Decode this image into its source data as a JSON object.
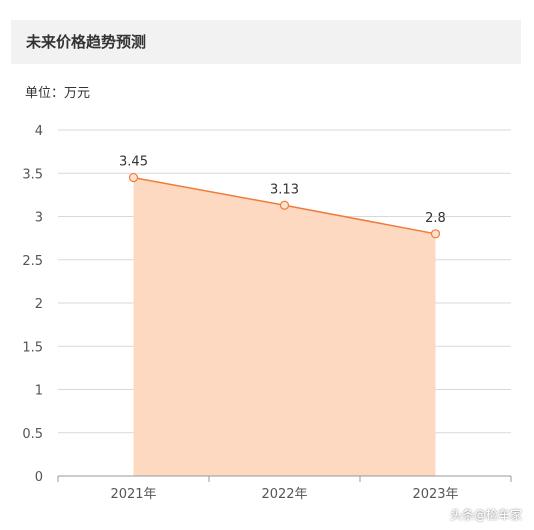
{
  "header": {
    "title": "未来价格趋势预测"
  },
  "unit_label": "单位：万元",
  "watermark": "头条@检车家",
  "colors": {
    "line": "#f07c3a",
    "area": "#fdd9c1",
    "grid": "#d9d9d9",
    "axis": "#999999",
    "text": "#555555"
  },
  "chart_data": {
    "type": "area",
    "title": "未来价格趋势预测",
    "ylabel": "单位：万元",
    "categories": [
      "2021年",
      "2022年",
      "2023年"
    ],
    "values": [
      3.45,
      3.13,
      2.8
    ],
    "data_labels": [
      "3.45",
      "3.13",
      "2.8"
    ],
    "ylim": [
      0,
      4
    ],
    "yticks": [
      "0",
      "0.5",
      "1",
      "1.5",
      "2",
      "2.5",
      "3",
      "3.5",
      "4"
    ],
    "grid": true
  }
}
